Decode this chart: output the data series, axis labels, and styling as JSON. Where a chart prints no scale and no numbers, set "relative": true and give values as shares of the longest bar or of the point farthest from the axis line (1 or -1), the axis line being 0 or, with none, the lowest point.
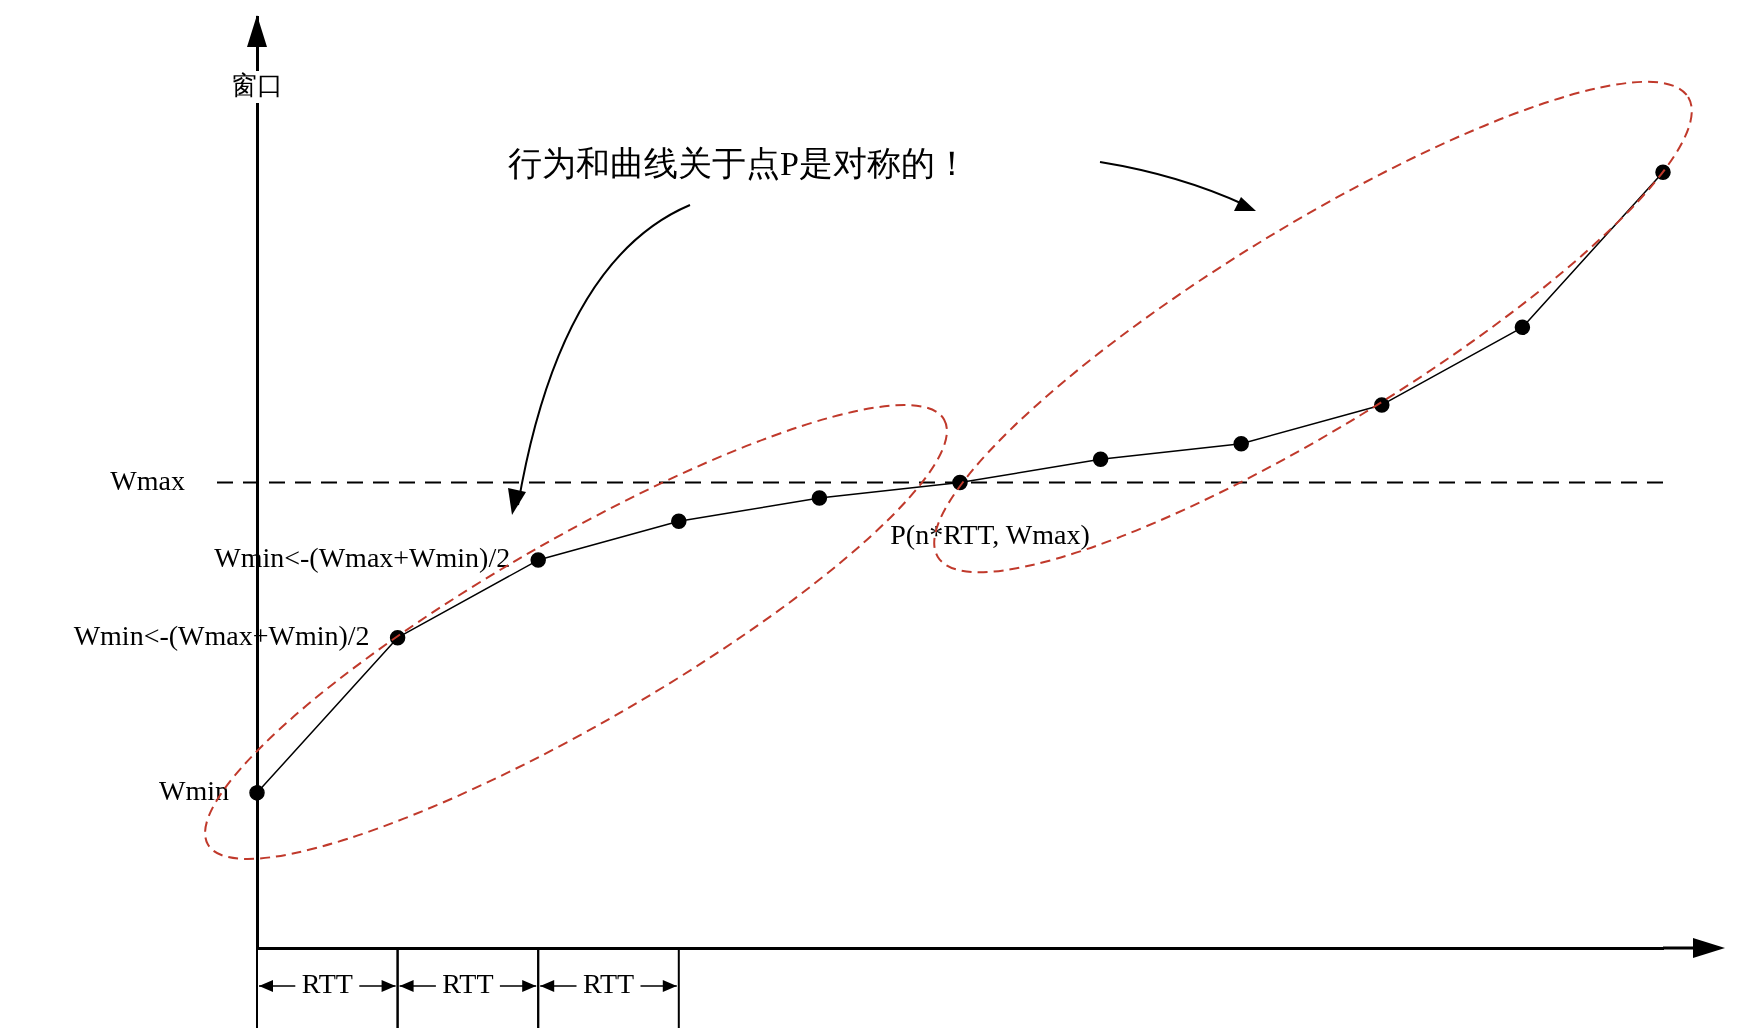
{
  "chart_data": {
    "type": "line",
    "relative": true,
    "ylabel": "窗口",
    "categories": [
      null,
      null,
      null,
      null,
      null,
      null,
      null,
      null,
      null,
      null,
      null
    ],
    "values": [
      0.2,
      0.4,
      0.5,
      0.55,
      0.58,
      0.6,
      0.63,
      0.65,
      0.7,
      0.8,
      1
    ],
    "color": "#000000",
    "marker": "circle",
    "line_style": "solid",
    "grid": false,
    "legend": false,
    "ref_lines": [
      {
        "axis": "y",
        "value": 0.6,
        "label": "Wmax",
        "line_style": "dashed",
        "color": "#000000"
      }
    ],
    "annotations": [
      "行为和曲线关于点P是对称的！",
      "Wmin",
      "Wmin<-(Wmax+Wmin)/2",
      "Wmin<-(Wmax+Wmin)/2",
      "P(n*RTT, Wmax)",
      "RTT",
      "RTT",
      "RTT"
    ]
  }
}
